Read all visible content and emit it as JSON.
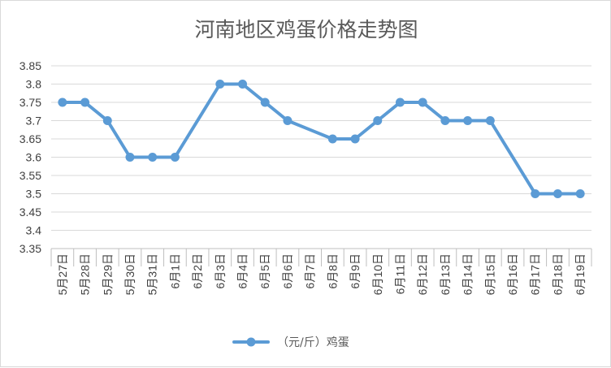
{
  "chart_data": {
    "type": "line",
    "title": "河南地区鸡蛋价格走势图",
    "xlabel": "",
    "ylabel": "",
    "categories": [
      "5月27日",
      "5月28日",
      "5月29日",
      "5月30日",
      "5月31日",
      "6月1日",
      "6月2日",
      "6月3日",
      "6月4日",
      "6月5日",
      "6月6日",
      "6月7日",
      "6月8日",
      "6月9日",
      "6月10日",
      "6月11日",
      "6月12日",
      "6月13日",
      "6月14日",
      "6月15日",
      "6月16日",
      "6月17日",
      "6月18日",
      "6月19日"
    ],
    "series": [
      {
        "name": "（元/斤）鸡蛋",
        "values": [
          3.75,
          3.75,
          3.7,
          3.6,
          3.6,
          3.6,
          null,
          3.8,
          3.8,
          3.75,
          3.7,
          null,
          3.65,
          3.65,
          3.7,
          3.75,
          3.75,
          3.7,
          3.7,
          3.7,
          null,
          3.5,
          3.5,
          3.5
        ]
      }
    ],
    "ylim": [
      3.35,
      3.85
    ],
    "yticks": [
      "3.35",
      "3.4",
      "3.45",
      "3.5",
      "3.55",
      "3.6",
      "3.65",
      "3.7",
      "3.75",
      "3.8",
      "3.85"
    ],
    "grid": true,
    "legend": "bottom",
    "colors": {
      "series": "#5b9bd5",
      "grid": "#d9d9d9",
      "axis": "#bfbfbf"
    }
  }
}
